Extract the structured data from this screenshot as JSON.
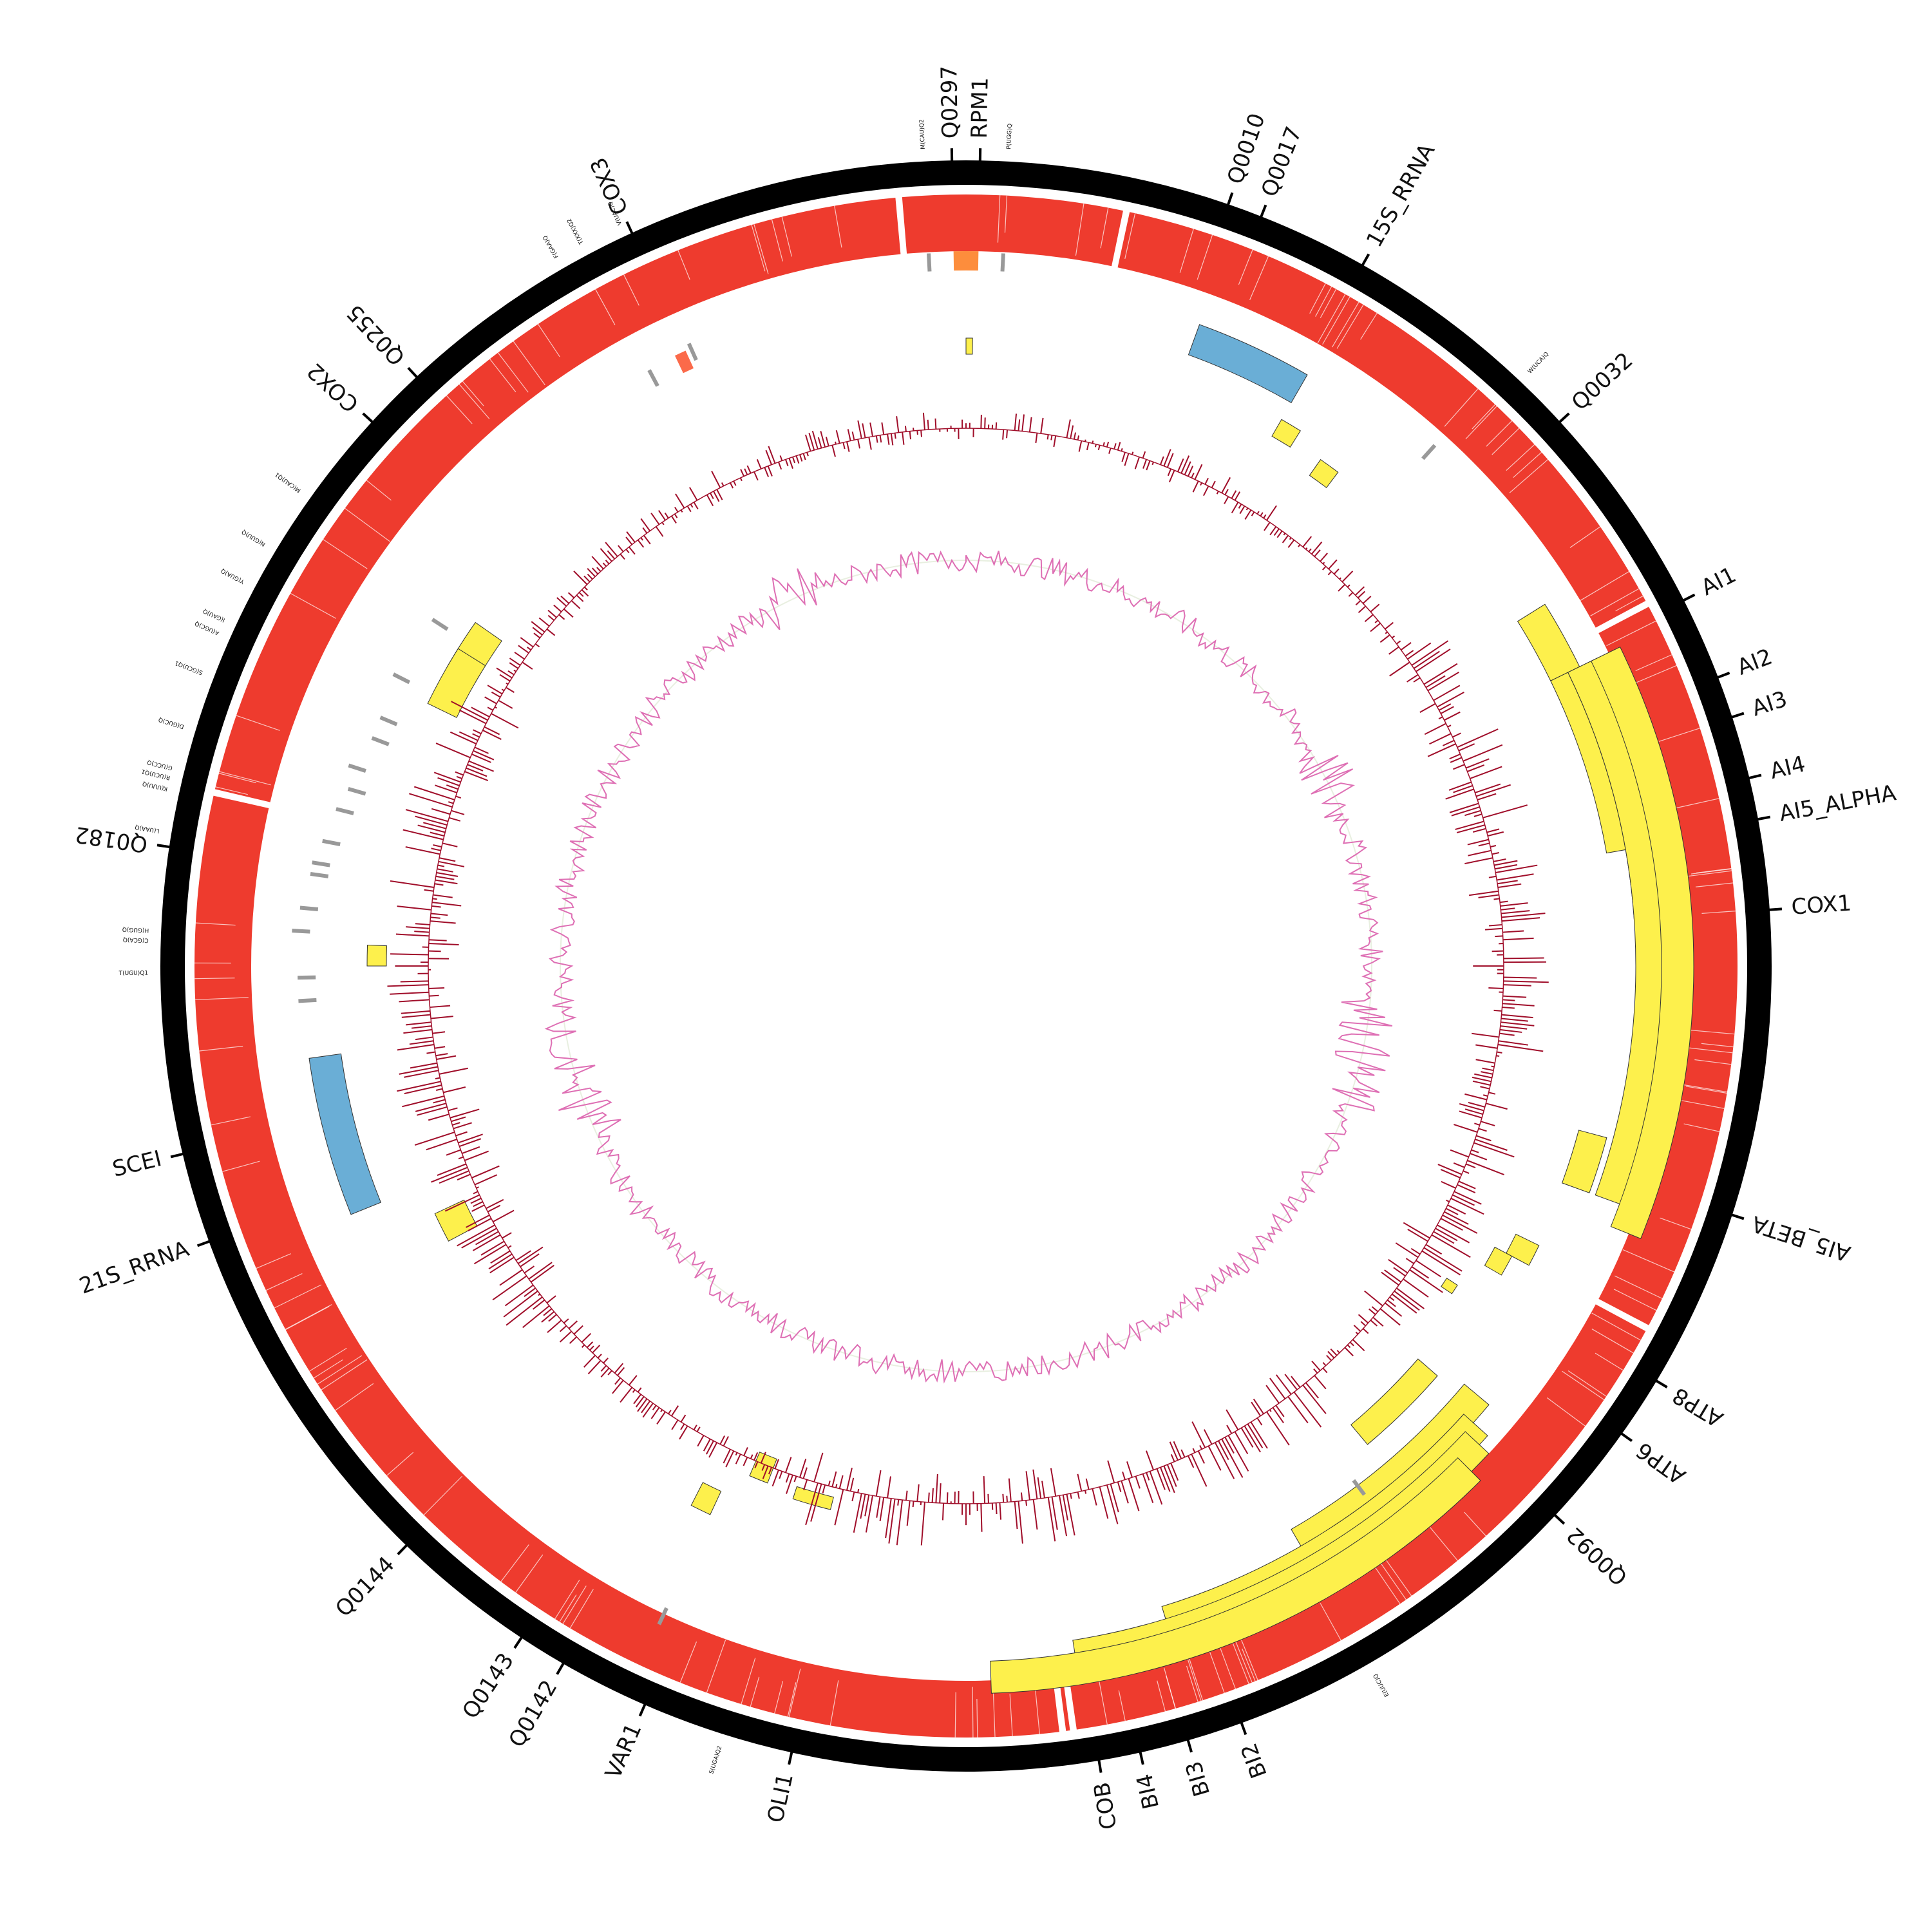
{
  "colors": {
    "backbone": "#000000",
    "coverage": "#ee3b2e",
    "feature_gene": "#fdf04c",
    "feature_rrna": "#6aaed6",
    "feature_trna": "#999999",
    "feature_orange": "#fd8d3c",
    "feature_tomato": "#fb6a4a",
    "gc_content": "#a00e2a",
    "gc_skew": "#de6fb4",
    "gc_skew_fill": "#e8efe0"
  },
  "gene_labels": [
    {
      "id": "Q0297",
      "text": "Q0297",
      "angle": 359.0
    },
    {
      "id": "RPM1",
      "text": "RPM1",
      "angle": 1.0
    },
    {
      "id": "Q0010",
      "text": "Q0010",
      "angle": 19.0
    },
    {
      "id": "Q0017",
      "text": "Q0017",
      "angle": 21.5
    },
    {
      "id": "15S_RRNA",
      "text": "15S_RRNA",
      "angle": 29.5
    },
    {
      "id": "Q0032",
      "text": "Q0032",
      "angle": 47.5
    },
    {
      "id": "AI1",
      "text": "AI1",
      "angle": 63.0
    },
    {
      "id": "AI2",
      "text": "AI2",
      "angle": 69.0
    },
    {
      "id": "AI3",
      "text": "AI3",
      "angle": 72.0
    },
    {
      "id": "AI4",
      "text": "AI4",
      "angle": 76.5
    },
    {
      "id": "AI5_ALPHA",
      "text": "AI5_ALPHA",
      "angle": 79.5
    },
    {
      "id": "COX1",
      "text": "COX1",
      "angle": 86.0
    },
    {
      "id": "AI5_BETA",
      "text": "AI5_BETA",
      "angle": 108.0
    },
    {
      "id": "ATP8",
      "text": "ATP8",
      "angle": 121.0
    },
    {
      "id": "ATP6",
      "text": "ATP6",
      "angle": 125.5
    },
    {
      "id": "Q0092",
      "text": "Q0092",
      "angle": 133.0
    },
    {
      "id": "BI2",
      "text": "BI2",
      "angle": 160.0
    },
    {
      "id": "BI3",
      "text": "BI3",
      "angle": 164.0
    },
    {
      "id": "BI4",
      "text": "BI4",
      "angle": 167.5
    },
    {
      "id": "COB",
      "text": "COB",
      "angle": 170.5
    },
    {
      "id": "OLI1",
      "text": "OLI1",
      "angle": 192.5
    },
    {
      "id": "VAR1",
      "text": "VAR1",
      "angle": 203.5
    },
    {
      "id": "Q0142",
      "text": "Q0142",
      "angle": 210.0
    },
    {
      "id": "Q0143",
      "text": "Q0143",
      "angle": 213.5
    },
    {
      "id": "Q0144",
      "text": "Q0144",
      "angle": 224.0
    },
    {
      "id": "21S_RRNA",
      "text": "21S_RRNA",
      "angle": 250.0
    },
    {
      "id": "SCEI",
      "text": "SCEI",
      "angle": 256.5
    },
    {
      "id": "Q0182",
      "text": "Q0182",
      "angle": 278.5
    },
    {
      "id": "COX2",
      "text": "COX2",
      "angle": 312.5
    },
    {
      "id": "Q0255",
      "text": "Q0255",
      "angle": 317.0
    },
    {
      "id": "COX3",
      "text": "COX3",
      "angle": 335.5
    }
  ],
  "trna_labels": [
    {
      "text": "M(CAU)Q2",
      "angle": 357.0
    },
    {
      "text": "P(UGG)Q",
      "angle": 3.0
    },
    {
      "text": "W(UCA)Q",
      "angle": 43.5
    },
    {
      "text": "V(UAC)Q",
      "angle": 335.0
    },
    {
      "text": "T(XXX)Q2",
      "angle": 332.0
    },
    {
      "text": "F(GAA)Q",
      "angle": 330.0
    },
    {
      "text": "M(CAU)Q1",
      "angle": 305.5
    },
    {
      "text": "N(GUU)Q",
      "angle": 301.0
    },
    {
      "text": "Y(GUA)Q",
      "angle": 298.0
    },
    {
      "text": "I(GAU)Q",
      "angle": 295.0
    },
    {
      "text": "A(UGC)Q",
      "angle": 294.0
    },
    {
      "text": "S(GCU)Q1",
      "angle": 291.0
    },
    {
      "text": "D(GUC)Q",
      "angle": 287.0
    },
    {
      "text": "G(UCC)Q",
      "angle": 284.0
    },
    {
      "text": "R(UCU)Q1",
      "angle": 283.3
    },
    {
      "text": "K(UUU)Q",
      "angle": 282.5
    },
    {
      "text": "L(UAA)Q",
      "angle": 279.5
    },
    {
      "text": "H(GUG)Q",
      "angle": 272.5
    },
    {
      "text": "C(GCA)Q",
      "angle": 271.8
    },
    {
      "text": "T(UGU)Q1",
      "angle": 269.5
    },
    {
      "text": "E(UUC)Q",
      "angle": 150.0
    },
    {
      "text": "S(UGA)Q2",
      "angle": 197.5
    }
  ]
}
